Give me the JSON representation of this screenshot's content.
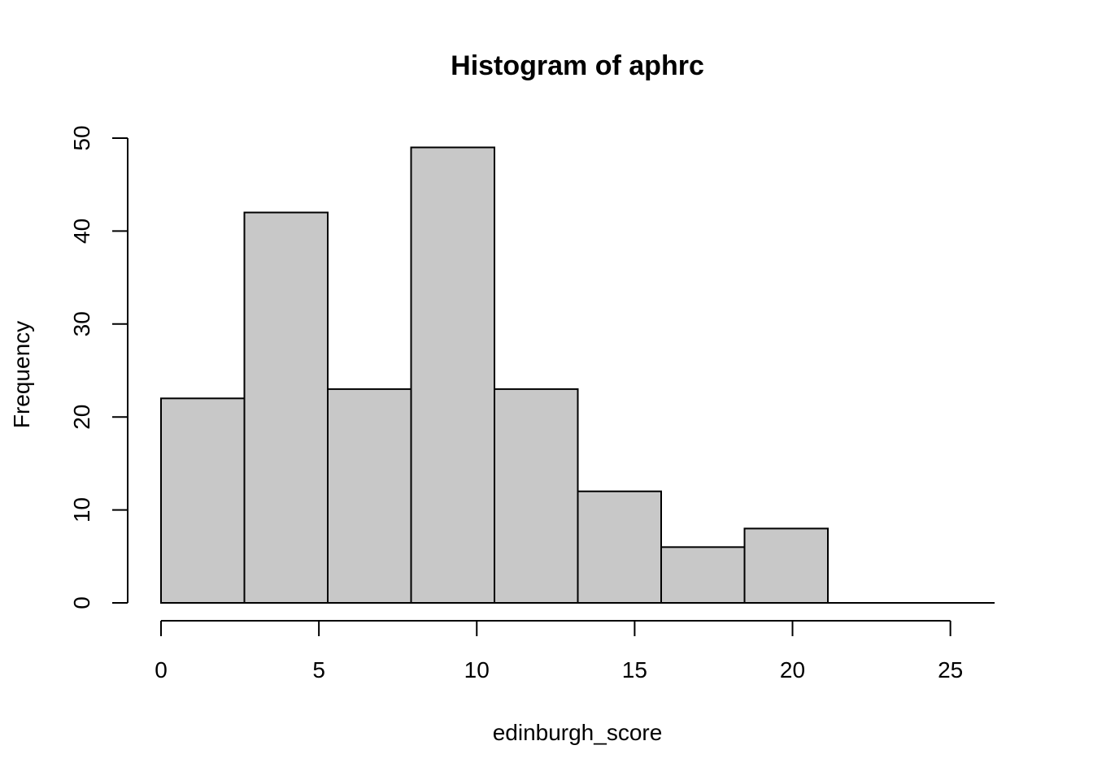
{
  "chart_data": {
    "type": "bar",
    "title": "Histogram of aphrc",
    "xlabel": "edinburgh_score",
    "ylabel": "Frequency",
    "bins": [
      {
        "from": 0.0,
        "to": 2.64,
        "count": 22
      },
      {
        "from": 2.64,
        "to": 5.28,
        "count": 42
      },
      {
        "from": 5.28,
        "to": 7.92,
        "count": 23
      },
      {
        "from": 7.92,
        "to": 10.56,
        "count": 49
      },
      {
        "from": 10.56,
        "to": 13.2,
        "count": 23
      },
      {
        "from": 13.2,
        "to": 15.84,
        "count": 12
      },
      {
        "from": 15.84,
        "to": 18.48,
        "count": 6
      },
      {
        "from": 18.48,
        "to": 21.12,
        "count": 8
      },
      {
        "from": 21.12,
        "to": 23.76,
        "count": 0
      },
      {
        "from": 23.76,
        "to": 26.4,
        "count": 0
      }
    ],
    "xlim": [
      0,
      26.4
    ],
    "ylim": [
      0,
      50
    ],
    "xticks": [
      0,
      5,
      10,
      15,
      20,
      25
    ],
    "yticks": [
      0,
      10,
      20,
      30,
      40,
      50
    ],
    "xtick_labels": [
      "0",
      "5",
      "10",
      "15",
      "20",
      "25"
    ],
    "ytick_labels": [
      "0",
      "10",
      "20",
      "30",
      "40",
      "50"
    ],
    "bar_color": "#c8c8c8",
    "grid": false,
    "legend": "none"
  }
}
